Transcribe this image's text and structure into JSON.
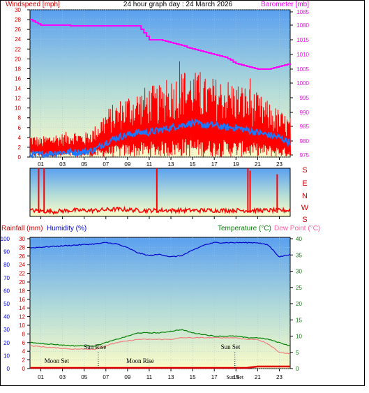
{
  "title": "24 hour graph day : 24 March 2026",
  "colors": {
    "wind": "#ff0000",
    "gust": "#ff0000",
    "avg": "#1e78ff",
    "baro": "#ff00ff",
    "humidity": "#0000c8",
    "temp": "#008000",
    "dew": "#f08080",
    "rain": "#dd0000",
    "left_label": "#cc0000",
    "hum_label": "#0000cc",
    "temp_label": "#008000",
    "dew_label": "#ff60a0"
  },
  "hour_labels": [
    "01",
    "03",
    "05",
    "07",
    "09",
    "11",
    "13",
    "15",
    "17",
    "19",
    "21",
    "23"
  ],
  "panel1": {
    "left_title": "Windspeed [mph]",
    "right_title": "Barometer [mb]",
    "left_ticks": [
      "30",
      "28",
      "26",
      "24",
      "22",
      "20",
      "18",
      "16",
      "14",
      "12",
      "10",
      "8",
      "6",
      "4",
      "2",
      "0"
    ],
    "right_ticks": [
      "1085",
      "1080",
      "1015",
      "1010",
      "1005",
      "1000",
      "995",
      "990",
      "985",
      "980",
      "975"
    ]
  },
  "panel2": {
    "dir_labels": [
      "S",
      "E",
      "N",
      "W",
      "S"
    ]
  },
  "panel3": {
    "title_rain": "Rainfall (mm)",
    "title_humidity": "Humidity (%)",
    "title_temp": "Temperature (°C)",
    "title_dew": "Dew Point (°C)",
    "hum_ticks": [
      "100",
      "90",
      "80",
      "70",
      "60",
      "50",
      "40",
      "30",
      "20",
      "10",
      "0"
    ],
    "rain_ticks": [
      "30",
      "28",
      "26",
      "24",
      "22",
      "20",
      "18",
      "16",
      "14",
      "12",
      "10",
      "8",
      "6",
      "4",
      "2",
      "0"
    ],
    "temp_ticks": [
      "40",
      "35",
      "30",
      "25",
      "20",
      "15",
      "10",
      "5",
      "0"
    ],
    "annotations": [
      {
        "text": "Sun Rise",
        "hour": 6.0,
        "row": "upper"
      },
      {
        "text": "Sun Set",
        "hour": 18.5,
        "row": "upper"
      },
      {
        "text": "Moon Set",
        "hour": 1.3,
        "row": "lower"
      },
      {
        "text": "Moon Rise",
        "hour": 9.0,
        "row": "lower"
      }
    ],
    "bottom_label_extra": "Sun Set"
  },
  "chart_data": [
    {
      "type": "line",
      "title": "24 hour graph day : 24 March 2026",
      "ylabel": "Windspeed [mph]",
      "ylabel_right": "Barometer [mb]",
      "xlim": [
        0,
        24
      ],
      "ylim": [
        0,
        30
      ],
      "series": [
        {
          "axis": "left",
          "points": [
            [
              0,
              3
            ],
            [
              1,
              2.5
            ],
            [
              2,
              3
            ],
            [
              3,
              3
            ],
            [
              4,
              3.5
            ],
            [
              5,
              3
            ],
            [
              6,
              4
            ],
            [
              7,
              6
            ],
            [
              8,
              7
            ],
            [
              9,
              8
            ],
            [
              10,
              8.5
            ],
            [
              11,
              9
            ],
            [
              12,
              9
            ],
            [
              13,
              10
            ],
            [
              14,
              11
            ],
            [
              15,
              11
            ],
            [
              16,
              10
            ],
            [
              17,
              10
            ],
            [
              18,
              10
            ],
            [
              19,
              9.5
            ],
            [
              20,
              9
            ],
            [
              21,
              8
            ],
            [
              22,
              7
            ],
            [
              23,
              6
            ],
            [
              24,
              5
            ]
          ]
        },
        {
          "axis": "left",
          "points": [
            [
              0,
              0.5
            ],
            [
              1,
              0.5
            ],
            [
              2,
              0.8
            ],
            [
              3,
              1
            ],
            [
              4,
              1
            ],
            [
              5,
              1
            ],
            [
              6,
              1.5
            ],
            [
              7,
              3
            ],
            [
              8,
              4
            ],
            [
              9,
              4.5
            ],
            [
              10,
              5
            ],
            [
              11,
              5
            ],
            [
              12,
              5.5
            ],
            [
              13,
              6
            ],
            [
              14,
              6.5
            ],
            [
              15,
              7
            ],
            [
              16,
              6.5
            ],
            [
              17,
              6.5
            ],
            [
              18,
              6
            ],
            [
              19,
              6
            ],
            [
              20,
              5.5
            ],
            [
              21,
              5
            ],
            [
              22,
              4.5
            ],
            [
              23,
              4
            ],
            [
              24,
              3
            ]
          ]
        },
        {
          "axis": "right",
          "points": [
            [
              0,
              1082
            ],
            [
              1,
              1080
            ],
            [
              2,
              1079
            ],
            [
              3,
              1079
            ],
            [
              4,
              1078
            ],
            [
              5,
              1078
            ],
            [
              6,
              1078
            ],
            [
              7,
              1078
            ],
            [
              8,
              1078
            ],
            [
              9,
              1077
            ],
            [
              10,
              1076
            ],
            [
              11,
              1015
            ],
            [
              12,
              1015
            ],
            [
              13,
              1014
            ],
            [
              14,
              1013
            ],
            [
              15,
              1012
            ],
            [
              16,
              1011
            ],
            [
              17,
              1010
            ],
            [
              18,
              1009
            ],
            [
              19,
              1007
            ],
            [
              20,
              1006
            ],
            [
              21,
              1005
            ],
            [
              22,
              1005
            ],
            [
              23,
              1006
            ],
            [
              24,
              1007
            ]
          ]
        }
      ]
    },
    {
      "type": "line",
      "ylim": [
        0,
        4
      ],
      "series": [
        {
          "points": [
            [
              0,
              0.5
            ],
            [
              2,
              0.4
            ],
            [
              4,
              0.5
            ],
            [
              6,
              0.5
            ],
            [
              8,
              0.6
            ],
            [
              10,
              0.5
            ],
            [
              12,
              0.5
            ],
            [
              14,
              0.5
            ],
            [
              16,
              0.5
            ],
            [
              18,
              0.5
            ],
            [
              20,
              0.5
            ],
            [
              22,
              0.5
            ],
            [
              24,
              0.5
            ]
          ]
        }
      ]
    },
    {
      "type": "line",
      "ylabel": "Humidity (%)",
      "ylabel_right": "Temperature (°C)",
      "xlim": [
        0,
        24
      ],
      "ylim": [
        0,
        100
      ],
      "series": [
        {
          "axis": "humidity",
          "points": [
            [
              0,
              93
            ],
            [
              2,
              94
            ],
            [
              4,
              95
            ],
            [
              6,
              96
            ],
            [
              7,
              97
            ],
            [
              8,
              96
            ],
            [
              9,
              93
            ],
            [
              10,
              89
            ],
            [
              11,
              87
            ],
            [
              12,
              88
            ],
            [
              13,
              86
            ],
            [
              14,
              87
            ],
            [
              15,
              91
            ],
            [
              16,
              95
            ],
            [
              17,
              97
            ],
            [
              18,
              97
            ],
            [
              19,
              97
            ],
            [
              20,
              97
            ],
            [
              21,
              97
            ],
            [
              22,
              95
            ],
            [
              23,
              86
            ],
            [
              24,
              88
            ]
          ]
        },
        {
          "axis": "temp",
          "points": [
            [
              0,
              8
            ],
            [
              2,
              7.5
            ],
            [
              4,
              7
            ],
            [
              6,
              7
            ],
            [
              7,
              8
            ],
            [
              8,
              9
            ],
            [
              9,
              10
            ],
            [
              10,
              11
            ],
            [
              11,
              11
            ],
            [
              12,
              11
            ],
            [
              13,
              11.5
            ],
            [
              14,
              12
            ],
            [
              15,
              11
            ],
            [
              16,
              10.5
            ],
            [
              17,
              10
            ],
            [
              18,
              10
            ],
            [
              19,
              10
            ],
            [
              20,
              9.5
            ],
            [
              21,
              9.5
            ],
            [
              22,
              9
            ],
            [
              23,
              8
            ],
            [
              24,
              7
            ]
          ]
        },
        {
          "axis": "temp",
          "points": [
            [
              0,
              7
            ],
            [
              2,
              6.5
            ],
            [
              4,
              6
            ],
            [
              6,
              6
            ],
            [
              7,
              7
            ],
            [
              8,
              8
            ],
            [
              9,
              8.5
            ],
            [
              10,
              9
            ],
            [
              11,
              9
            ],
            [
              12,
              9
            ],
            [
              13,
              9
            ],
            [
              14,
              9.5
            ],
            [
              15,
              9.5
            ],
            [
              16,
              9.5
            ],
            [
              17,
              9.5
            ],
            [
              18,
              9.5
            ],
            [
              19,
              9.5
            ],
            [
              20,
              9
            ],
            [
              21,
              9
            ],
            [
              22,
              7.5
            ],
            [
              23,
              5
            ],
            [
              24,
              4.5
            ]
          ]
        },
        {
          "axis": "rain",
          "points": [
            [
              0,
              0
            ],
            [
              12,
              0
            ],
            [
              20,
              0
            ],
            [
              21,
              0.5
            ],
            [
              24,
              0.5
            ]
          ]
        }
      ]
    }
  ]
}
